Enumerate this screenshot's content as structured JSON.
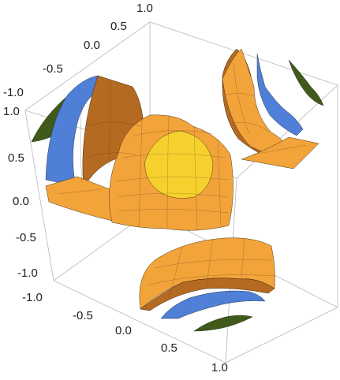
{
  "chart_data": {
    "type": "surface3d",
    "title": "",
    "x_ticks": [
      "-1.0",
      "-0.5",
      "0.0",
      "0.5",
      "1.0"
    ],
    "y_ticks": [
      "-1.0",
      "-0.5",
      "0.0",
      "0.5",
      "1.0"
    ],
    "z_ticks": [
      "-1.0",
      "-0.5",
      "0.0",
      "0.5",
      "1.0"
    ],
    "xlim": [
      -1,
      1
    ],
    "ylim": [
      -1,
      1
    ],
    "zlim": [
      -1,
      1
    ],
    "box": true,
    "mesh": true,
    "colors": {
      "orange": "#f2a33a",
      "yellow": "#f6d12e",
      "brown": "#b56a22",
      "blue": "#4f7fd6",
      "green": "#3f5a1a",
      "box": "#b8b8b8"
    },
    "surfaces": [
      {
        "name": "",
        "group": "center",
        "color": "orange"
      },
      {
        "name": "",
        "group": "left-wall",
        "color": "blue"
      },
      {
        "name": "",
        "group": "right-wall",
        "color": "blue"
      },
      {
        "name": "",
        "group": "bottom-cap",
        "color": "orange"
      }
    ]
  }
}
